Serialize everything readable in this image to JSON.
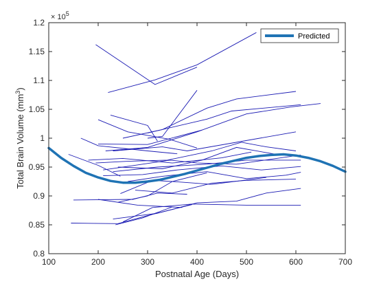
{
  "chart_data": {
    "type": "line",
    "xlabel": "Postnatal Age (Days)",
    "ylabel_main": "Total Brain Volume (mm",
    "ylabel_sup": "3",
    "ylabel_end": ")",
    "y_multiplier_base": "× 10",
    "y_multiplier_exp": "5",
    "xlim": [
      100,
      700
    ],
    "ylim": [
      0.8,
      1.2
    ],
    "xticks": [
      100,
      200,
      300,
      400,
      500,
      600,
      700
    ],
    "yticks": [
      0.8,
      0.85,
      0.9,
      0.95,
      1,
      1.05,
      1.1,
      1.15,
      1.2
    ],
    "ytick_labels": [
      "0.8",
      "0.85",
      "0.9",
      "0.95",
      "1",
      "1.05",
      "1.1",
      "1.15",
      "1.2"
    ],
    "grid": false,
    "legend": {
      "position": "top-right",
      "entries": [
        "Predicted"
      ]
    },
    "colors": {
      "subjects": "#1a1ab3",
      "predicted": "#1f73b4"
    },
    "subjects": [
      [
        [
          195,
          1.162
        ],
        [
          315,
          1.093
        ],
        [
          400,
          1.123
        ]
      ],
      [
        [
          220,
          1.079
        ],
        [
          315,
          1.101
        ],
        [
          400,
          1.127
        ],
        [
          520,
          1.183
        ]
      ],
      [
        [
          225,
          1.04
        ],
        [
          300,
          1.022
        ],
        [
          320,
          0.995
        ]
      ],
      [
        [
          300,
          1.009
        ],
        [
          420,
          1.033
        ],
        [
          470,
          1.047
        ],
        [
          610,
          1.058
        ]
      ],
      [
        [
          250,
          1.0
        ],
        [
          330,
          1.015
        ],
        [
          420,
          1.052
        ],
        [
          480,
          1.068
        ],
        [
          600,
          1.081
        ]
      ],
      [
        [
          300,
          1.0
        ],
        [
          330,
          1.003
        ],
        [
          400,
          1.083
        ]
      ],
      [
        [
          200,
          1.032
        ],
        [
          260,
          1.011
        ],
        [
          345,
          0.998
        ],
        [
          400,
          0.983
        ]
      ],
      [
        [
          165,
          1.0
        ],
        [
          200,
          0.987
        ],
        [
          300,
          0.978
        ],
        [
          360,
          0.973
        ]
      ],
      [
        [
          215,
          0.978
        ],
        [
          300,
          0.984
        ],
        [
          400,
          1.011
        ],
        [
          500,
          1.042
        ],
        [
          590,
          1.054
        ],
        [
          650,
          1.06
        ]
      ],
      [
        [
          230,
          0.978
        ],
        [
          330,
          0.985
        ],
        [
          380,
          0.978
        ],
        [
          600,
          1.011
        ]
      ],
      [
        [
          200,
          0.99
        ],
        [
          300,
          0.989
        ],
        [
          410,
          1.014
        ]
      ],
      [
        [
          180,
          0.962
        ],
        [
          250,
          0.965
        ],
        [
          350,
          0.957
        ],
        [
          450,
          0.966
        ],
        [
          510,
          0.976
        ]
      ],
      [
        [
          195,
          0.957
        ],
        [
          260,
          0.96
        ],
        [
          340,
          0.962
        ],
        [
          430,
          0.978
        ],
        [
          490,
          0.993
        ],
        [
          540,
          0.985
        ],
        [
          600,
          0.978
        ]
      ],
      [
        [
          140,
          0.972
        ],
        [
          200,
          0.953
        ],
        [
          245,
          0.934
        ]
      ],
      [
        [
          210,
          0.945
        ],
        [
          290,
          0.955
        ],
        [
          345,
          0.962
        ],
        [
          400,
          0.957
        ],
        [
          480,
          0.955
        ],
        [
          610,
          0.971
        ]
      ],
      [
        [
          240,
          0.95
        ],
        [
          330,
          0.947
        ],
        [
          410,
          0.962
        ],
        [
          480,
          0.984
        ],
        [
          560,
          0.972
        ]
      ],
      [
        [
          230,
          0.942
        ],
        [
          320,
          0.95
        ],
        [
          420,
          0.955
        ],
        [
          500,
          0.962
        ],
        [
          610,
          0.962
        ]
      ],
      [
        [
          210,
          0.935
        ],
        [
          290,
          0.937
        ],
        [
          360,
          0.945
        ],
        [
          450,
          0.952
        ],
        [
          530,
          0.945
        ],
        [
          610,
          0.951
        ]
      ],
      [
        [
          260,
          0.925
        ],
        [
          330,
          0.934
        ],
        [
          420,
          0.942
        ],
        [
          500,
          0.93
        ],
        [
          580,
          0.936
        ],
        [
          610,
          0.941
        ]
      ],
      [
        [
          245,
          0.904
        ],
        [
          310,
          0.927
        ],
        [
          350,
          0.925
        ],
        [
          430,
          0.92
        ],
        [
          540,
          0.932
        ]
      ],
      [
        [
          275,
          0.91
        ],
        [
          350,
          0.905
        ],
        [
          430,
          0.922
        ],
        [
          500,
          0.927
        ],
        [
          600,
          0.929
        ]
      ],
      [
        [
          150,
          0.893
        ],
        [
          270,
          0.894
        ],
        [
          320,
          0.905
        ],
        [
          380,
          0.903
        ]
      ],
      [
        [
          200,
          0.894
        ],
        [
          280,
          0.884
        ],
        [
          370,
          0.88
        ]
      ],
      [
        [
          240,
          0.889
        ],
        [
          300,
          0.9
        ],
        [
          350,
          0.925
        ],
        [
          420,
          0.94
        ]
      ],
      [
        [
          230,
          0.86
        ],
        [
          320,
          0.87
        ],
        [
          400,
          0.888
        ],
        [
          480,
          0.891
        ],
        [
          540,
          0.905
        ],
        [
          610,
          0.913
        ]
      ],
      [
        [
          145,
          0.853
        ],
        [
          240,
          0.852
        ],
        [
          300,
          0.866
        ],
        [
          390,
          0.885
        ]
      ],
      [
        [
          235,
          0.85
        ],
        [
          290,
          0.862
        ],
        [
          350,
          0.881
        ]
      ],
      [
        [
          250,
          0.855
        ],
        [
          310,
          0.88
        ],
        [
          390,
          0.886
        ],
        [
          500,
          0.884
        ],
        [
          610,
          0.884
        ]
      ]
    ],
    "predicted": {
      "name": "Predicted",
      "x": [
        100,
        125,
        150,
        175,
        200,
        225,
        250,
        275,
        300,
        325,
        350,
        375,
        400,
        425,
        450,
        475,
        500,
        525,
        550,
        575,
        600,
        625,
        650,
        675,
        700
      ],
      "y": [
        0.983,
        0.966,
        0.952,
        0.94,
        0.932,
        0.926,
        0.923,
        0.923,
        0.925,
        0.928,
        0.933,
        0.938,
        0.944,
        0.95,
        0.956,
        0.961,
        0.966,
        0.969,
        0.971,
        0.972,
        0.97,
        0.966,
        0.96,
        0.952,
        0.942
      ]
    }
  }
}
